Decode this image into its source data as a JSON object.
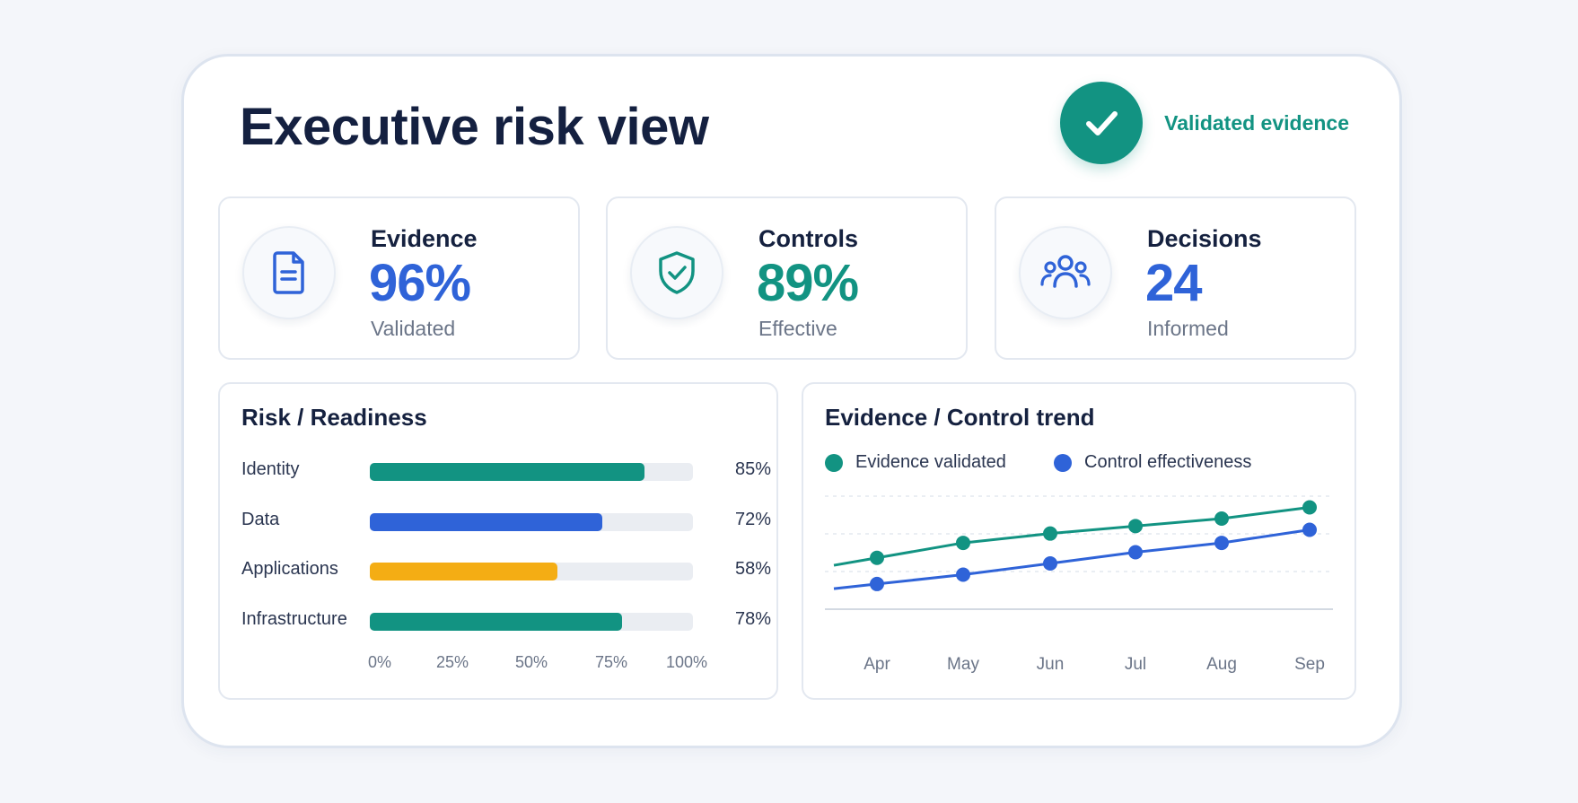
{
  "header": {
    "title": "Executive risk view",
    "badge_label": "Validated evidence",
    "badge_icon": "check-icon",
    "badge_color": "#129382"
  },
  "kpis": [
    {
      "label": "Evidence",
      "value": "96%",
      "sub": "Validated",
      "icon": "document-icon",
      "color": "#2f63d8"
    },
    {
      "label": "Controls",
      "value": "89%",
      "sub": "Effective",
      "icon": "shield-check-icon",
      "color": "#129382"
    },
    {
      "label": "Decisions",
      "value": "24",
      "sub": "Informed",
      "icon": "users-icon",
      "color": "#2f63d8"
    }
  ],
  "readiness": {
    "title": "Risk / Readiness",
    "rows": [
      {
        "label": "Identity",
        "value": 85,
        "pct": "85%",
        "color": "#129382"
      },
      {
        "label": "Data",
        "value": 72,
        "pct": "72%",
        "color": "#2f63d8"
      },
      {
        "label": "Applications",
        "value": 58,
        "pct": "58%",
        "color": "#f4ad14"
      },
      {
        "label": "Infrastructure",
        "value": 78,
        "pct": "78%",
        "color": "#129382"
      }
    ],
    "axis_ticks": [
      "0%",
      "25%",
      "50%",
      "75%",
      "100%"
    ]
  },
  "chart_data": {
    "type": "line",
    "title": "Evidence / Control trend",
    "categories": [
      "Apr",
      "May",
      "Jun",
      "Jul",
      "Aug",
      "Sep"
    ],
    "series": [
      {
        "name": "Evidence validated",
        "color": "#129382",
        "values": [
          67,
          75,
          80,
          84,
          88,
          94
        ]
      },
      {
        "name": "Control effectiveness",
        "color": "#2f63d8",
        "values": [
          53,
          58,
          64,
          70,
          75,
          82
        ]
      }
    ],
    "ylim": [
      40,
      100
    ],
    "grid": true,
    "legend": "top-left"
  }
}
